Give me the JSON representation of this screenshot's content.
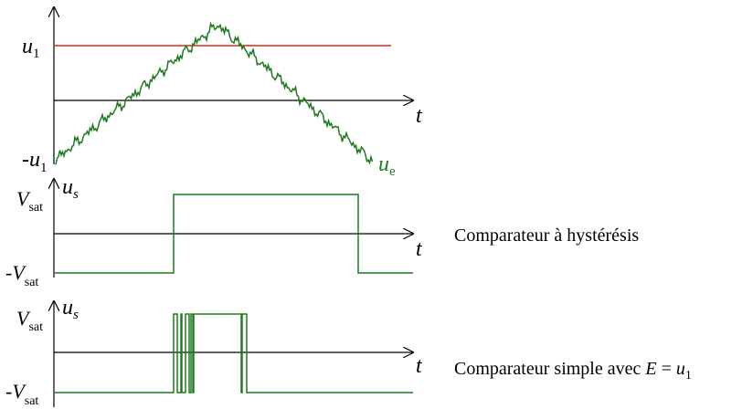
{
  "panel1": {
    "threshold_label": "u",
    "threshold_sub": "1",
    "neg_threshold_label": "-u",
    "neg_threshold_sub": "1",
    "time_label": "t",
    "signal_label": "u",
    "signal_sub": "e",
    "signal_color": "#1f7a1f",
    "threshold_color": "#e0261f"
  },
  "panel2": {
    "y_label": "u",
    "y_sub": "s",
    "vsat_label": "V",
    "vsat_sub": "sat",
    "neg_vsat_label": "-V",
    "neg_vsat_sub": "sat",
    "time_label": "t",
    "caption": "Comparateur à hystérésis"
  },
  "panel3": {
    "y_label": "u",
    "y_sub": "s",
    "vsat_label": "V",
    "vsat_sub": "sat",
    "neg_vsat_label": "-V",
    "neg_vsat_sub": "sat",
    "time_label": "t",
    "caption_prefix": "Comparateur simple avec ",
    "caption_var": "E",
    "caption_eq": " = ",
    "caption_u": "u",
    "caption_sub": "1"
  },
  "colors": {
    "axis": "#000000",
    "signal": "#1f7a1f",
    "threshold": "#e0261f"
  }
}
